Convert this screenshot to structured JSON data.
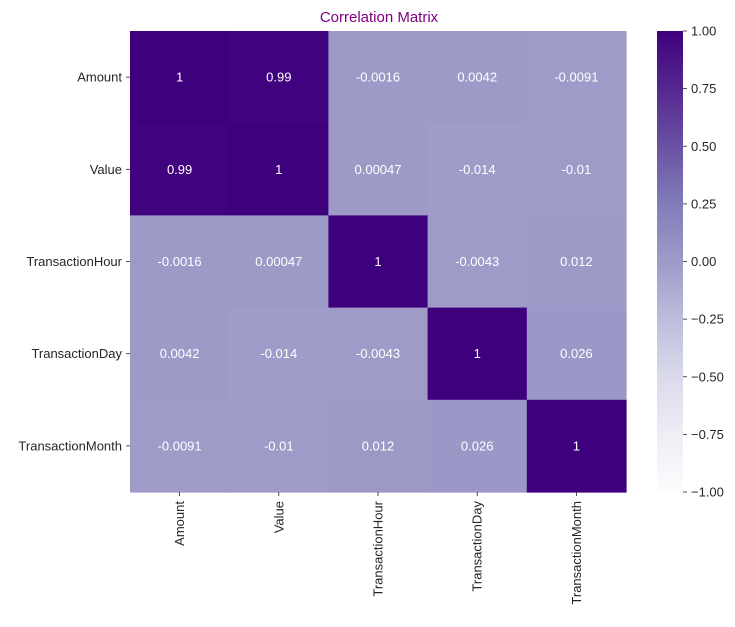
{
  "chart_data": {
    "type": "heatmap",
    "title": "Correlation Matrix",
    "title_color": "#800080",
    "row_labels": [
      "Amount",
      "Value",
      "TransactionHour",
      "TransactionDay",
      "TransactionMonth"
    ],
    "col_labels": [
      "Amount",
      "Value",
      "TransactionHour",
      "TransactionDay",
      "TransactionMonth"
    ],
    "values": [
      [
        1,
        0.99,
        -0.0016,
        0.0042,
        -0.0091
      ],
      [
        0.99,
        1,
        0.00047,
        -0.014,
        -0.01
      ],
      [
        -0.0016,
        0.00047,
        1,
        -0.0043,
        0.012
      ],
      [
        0.0042,
        -0.014,
        -0.0043,
        1,
        0.026
      ],
      [
        -0.0091,
        -0.01,
        0.012,
        0.026,
        1
      ]
    ],
    "cell_labels": [
      [
        "1",
        "0.99",
        "-0.0016",
        "0.0042",
        "-0.0091"
      ],
      [
        "0.99",
        "1",
        "0.00047",
        "-0.014",
        "-0.01"
      ],
      [
        "-0.0016",
        "0.00047",
        "1",
        "-0.0043",
        "0.012"
      ],
      [
        "0.0042",
        "-0.014",
        "-0.0043",
        "1",
        "0.026"
      ],
      [
        "-0.0091",
        "-0.01",
        "0.012",
        "0.026",
        "1"
      ]
    ],
    "colormap": "Purples",
    "value_range": [
      -1,
      1
    ],
    "colorbar": {
      "ticks": [
        1.0,
        0.75,
        0.5,
        0.25,
        0.0,
        -0.25,
        -0.5,
        -0.75,
        -1.0
      ],
      "tick_labels": [
        "1.00",
        "0.75",
        "0.50",
        "0.25",
        "0.00",
        "−0.25",
        "−0.50",
        "−0.75",
        "−1.00"
      ]
    },
    "annotate": true,
    "grid": false
  }
}
